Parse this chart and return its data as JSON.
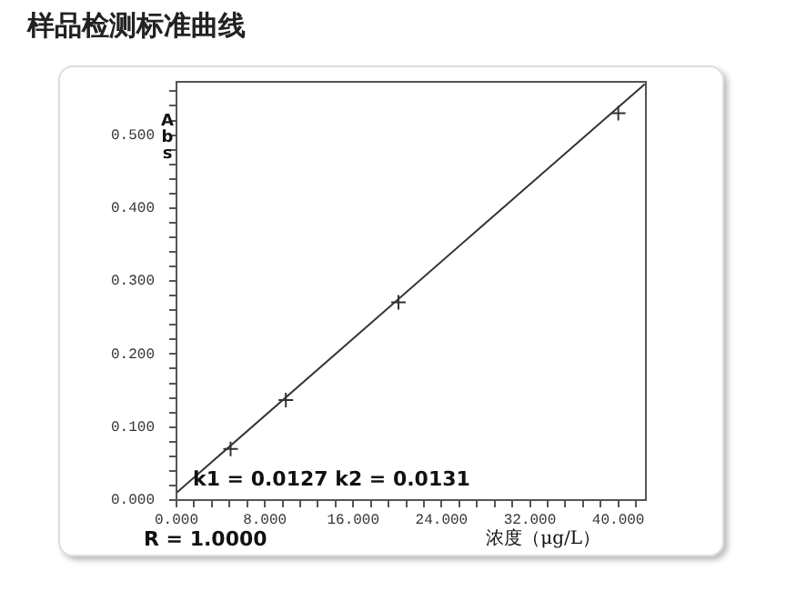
{
  "chart_data": {
    "type": "scatter",
    "title": "样品检测标准曲线",
    "xlabel": "浓度（μg/L）",
    "ylabel": "Abs",
    "xlim": [
      0,
      42.5
    ],
    "ylim": [
      0,
      0.573
    ],
    "xticks": [
      {
        "value": 0,
        "label": "0.000"
      },
      {
        "value": 1.6,
        "label": null
      },
      {
        "value": 3.2,
        "label": null
      },
      {
        "value": 4.8,
        "label": null
      },
      {
        "value": 6.4,
        "label": null
      },
      {
        "value": 8,
        "label": "8.000"
      },
      {
        "value": 9.6,
        "label": null
      },
      {
        "value": 11.2,
        "label": null
      },
      {
        "value": 12.8,
        "label": null
      },
      {
        "value": 14.4,
        "label": null
      },
      {
        "value": 16,
        "label": "16.000"
      },
      {
        "value": 17.6,
        "label": null
      },
      {
        "value": 19.2,
        "label": null
      },
      {
        "value": 20.8,
        "label": null
      },
      {
        "value": 22.4,
        "label": null
      },
      {
        "value": 24,
        "label": "24.000"
      },
      {
        "value": 25.6,
        "label": null
      },
      {
        "value": 27.2,
        "label": null
      },
      {
        "value": 28.8,
        "label": null
      },
      {
        "value": 30.4,
        "label": null
      },
      {
        "value": 32,
        "label": "32.000"
      },
      {
        "value": 33.6,
        "label": null
      },
      {
        "value": 35.2,
        "label": null
      },
      {
        "value": 36.8,
        "label": null
      },
      {
        "value": 38.4,
        "label": null
      },
      {
        "value": 40,
        "label": "40.000"
      },
      {
        "value": 41.6,
        "label": null
      }
    ],
    "yticks": [
      {
        "value": 0,
        "label": "0.000"
      },
      {
        "value": 0.02,
        "label": null
      },
      {
        "value": 0.04,
        "label": null
      },
      {
        "value": 0.06,
        "label": null
      },
      {
        "value": 0.08,
        "label": null
      },
      {
        "value": 0.1,
        "label": "0.100"
      },
      {
        "value": 0.12,
        "label": null
      },
      {
        "value": 0.14,
        "label": null
      },
      {
        "value": 0.16,
        "label": null
      },
      {
        "value": 0.18,
        "label": null
      },
      {
        "value": 0.2,
        "label": "0.200"
      },
      {
        "value": 0.22,
        "label": null
      },
      {
        "value": 0.24,
        "label": null
      },
      {
        "value": 0.26,
        "label": null
      },
      {
        "value": 0.28,
        "label": null
      },
      {
        "value": 0.3,
        "label": "0.300"
      },
      {
        "value": 0.32,
        "label": null
      },
      {
        "value": 0.34,
        "label": null
      },
      {
        "value": 0.36,
        "label": null
      },
      {
        "value": 0.38,
        "label": null
      },
      {
        "value": 0.4,
        "label": "0.400"
      },
      {
        "value": 0.42,
        "label": null
      },
      {
        "value": 0.44,
        "label": null
      },
      {
        "value": 0.46,
        "label": null
      },
      {
        "value": 0.48,
        "label": null
      },
      {
        "value": 0.5,
        "label": "0.500"
      },
      {
        "value": 0.52,
        "label": null
      },
      {
        "value": 0.54,
        "label": null
      },
      {
        "value": 0.56,
        "label": null
      }
    ],
    "grid": false,
    "legend": false,
    "marker": "cross",
    "series": [
      {
        "type": "line",
        "marker": "none",
        "color": "#333333",
        "x": [
          0,
          42.4
        ],
        "values": [
          0.01,
          0.57
        ]
      },
      {
        "color": "#333333",
        "x": [
          4.9,
          9.9,
          20.1,
          40
        ],
        "values": [
          0.07,
          0.137,
          0.271,
          0.53
        ]
      }
    ],
    "annotations": [
      "k1 = 0.0127 k2 = 0.0131",
      "R = 1.0000"
    ]
  }
}
